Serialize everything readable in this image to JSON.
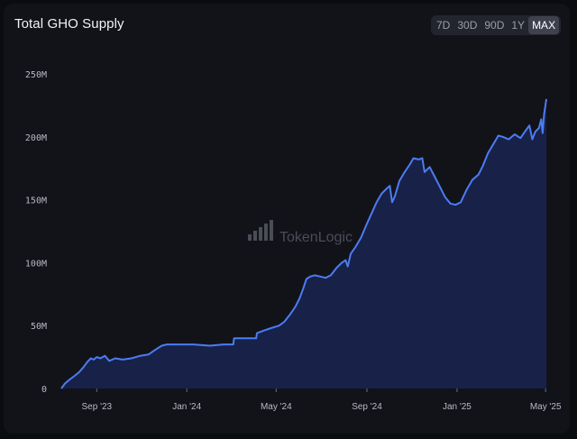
{
  "header": {
    "title": "Total GHO Supply",
    "ranges": [
      {
        "label": "7D",
        "active": false
      },
      {
        "label": "30D",
        "active": false
      },
      {
        "label": "90D",
        "active": false
      },
      {
        "label": "1Y",
        "active": false
      },
      {
        "label": "MAX",
        "active": true
      }
    ]
  },
  "watermark": {
    "text": "TokenLogic"
  },
  "colors": {
    "line": "#4c7cf3",
    "fill": "#182148",
    "background": "#121319"
  },
  "chart_data": {
    "type": "area",
    "title": "Total GHO Supply",
    "xlabel": "",
    "ylabel": "",
    "ylim": [
      0,
      250
    ],
    "y_unit": "M",
    "y_ticks": [
      {
        "value": 0,
        "label": "0"
      },
      {
        "value": 50,
        "label": "50M"
      },
      {
        "value": 100,
        "label": "100M"
      },
      {
        "value": 150,
        "label": "150M"
      },
      {
        "value": 200,
        "label": "200M"
      },
      {
        "value": 250,
        "label": "250M"
      }
    ],
    "x_ticks": [
      {
        "date": "2023-09-01",
        "label": "Sep '23"
      },
      {
        "date": "2024-01-01",
        "label": "Jan '24"
      },
      {
        "date": "2024-05-01",
        "label": "May '24"
      },
      {
        "date": "2024-09-01",
        "label": "Sep '24"
      },
      {
        "date": "2025-01-01",
        "label": "Jan '25"
      },
      {
        "date": "2025-05-01",
        "label": "May '25"
      }
    ],
    "grid": false,
    "legend": "none",
    "series": [
      {
        "values": [
          [
            "2023-07-15",
            0
          ],
          [
            "2023-07-20",
            4
          ],
          [
            "2023-07-26",
            7
          ],
          [
            "2023-08-02",
            10
          ],
          [
            "2023-08-08",
            13
          ],
          [
            "2023-08-14",
            17
          ],
          [
            "2023-08-19",
            21
          ],
          [
            "2023-08-24",
            24
          ],
          [
            "2023-08-28",
            23
          ],
          [
            "2023-09-01",
            25
          ],
          [
            "2023-09-06",
            24
          ],
          [
            "2023-09-12",
            26
          ],
          [
            "2023-09-18",
            22
          ],
          [
            "2023-09-26",
            24
          ],
          [
            "2023-10-06",
            23
          ],
          [
            "2023-10-18",
            24
          ],
          [
            "2023-10-30",
            26
          ],
          [
            "2023-11-10",
            27
          ],
          [
            "2023-11-20",
            31
          ],
          [
            "2023-11-28",
            34
          ],
          [
            "2023-12-05",
            35
          ],
          [
            "2023-12-20",
            35
          ],
          [
            "2024-01-10",
            35
          ],
          [
            "2024-02-01",
            34
          ],
          [
            "2024-02-20",
            35
          ],
          [
            "2024-03-04",
            35
          ],
          [
            "2024-03-05",
            40
          ],
          [
            "2024-03-25",
            40
          ],
          [
            "2024-04-04",
            40
          ],
          [
            "2024-04-05",
            44
          ],
          [
            "2024-04-14",
            46
          ],
          [
            "2024-04-24",
            48
          ],
          [
            "2024-05-05",
            50
          ],
          [
            "2024-05-12",
            53
          ],
          [
            "2024-05-20",
            59
          ],
          [
            "2024-05-27",
            65
          ],
          [
            "2024-06-02",
            72
          ],
          [
            "2024-06-07",
            80
          ],
          [
            "2024-06-11",
            87
          ],
          [
            "2024-06-16",
            89
          ],
          [
            "2024-06-22",
            90
          ],
          [
            "2024-06-30",
            89
          ],
          [
            "2024-07-07",
            88
          ],
          [
            "2024-07-14",
            90
          ],
          [
            "2024-07-22",
            96
          ],
          [
            "2024-07-29",
            100
          ],
          [
            "2024-08-03",
            102
          ],
          [
            "2024-08-06",
            97
          ],
          [
            "2024-08-10",
            107
          ],
          [
            "2024-08-16",
            112
          ],
          [
            "2024-08-24",
            120
          ],
          [
            "2024-09-01",
            131
          ],
          [
            "2024-09-08",
            140
          ],
          [
            "2024-09-14",
            148
          ],
          [
            "2024-09-21",
            155
          ],
          [
            "2024-09-28",
            159
          ],
          [
            "2024-10-02",
            161
          ],
          [
            "2024-10-05",
            148
          ],
          [
            "2024-10-09",
            153
          ],
          [
            "2024-10-15",
            165
          ],
          [
            "2024-10-22",
            172
          ],
          [
            "2024-10-29",
            178
          ],
          [
            "2024-11-03",
            183
          ],
          [
            "2024-11-10",
            182
          ],
          [
            "2024-11-15",
            183
          ],
          [
            "2024-11-18",
            172
          ],
          [
            "2024-11-25",
            176
          ],
          [
            "2024-12-02",
            168
          ],
          [
            "2024-12-09",
            160
          ],
          [
            "2024-12-16",
            152
          ],
          [
            "2024-12-23",
            147
          ],
          [
            "2024-12-30",
            146
          ],
          [
            "2025-01-06",
            148
          ],
          [
            "2025-01-14",
            158
          ],
          [
            "2025-01-22",
            166
          ],
          [
            "2025-01-30",
            170
          ],
          [
            "2025-02-05",
            177
          ],
          [
            "2025-02-12",
            187
          ],
          [
            "2025-02-19",
            194
          ],
          [
            "2025-02-26",
            201
          ],
          [
            "2025-03-04",
            200
          ],
          [
            "2025-03-12",
            198
          ],
          [
            "2025-03-20",
            202
          ],
          [
            "2025-03-28",
            199
          ],
          [
            "2025-04-04",
            205
          ],
          [
            "2025-04-09",
            209
          ],
          [
            "2025-04-13",
            198
          ],
          [
            "2025-04-17",
            204
          ],
          [
            "2025-04-22",
            207
          ],
          [
            "2025-04-25",
            214
          ],
          [
            "2025-04-27",
            203
          ],
          [
            "2025-04-29",
            218
          ],
          [
            "2025-05-01",
            226
          ],
          [
            "2025-05-02",
            230
          ]
        ]
      }
    ]
  }
}
